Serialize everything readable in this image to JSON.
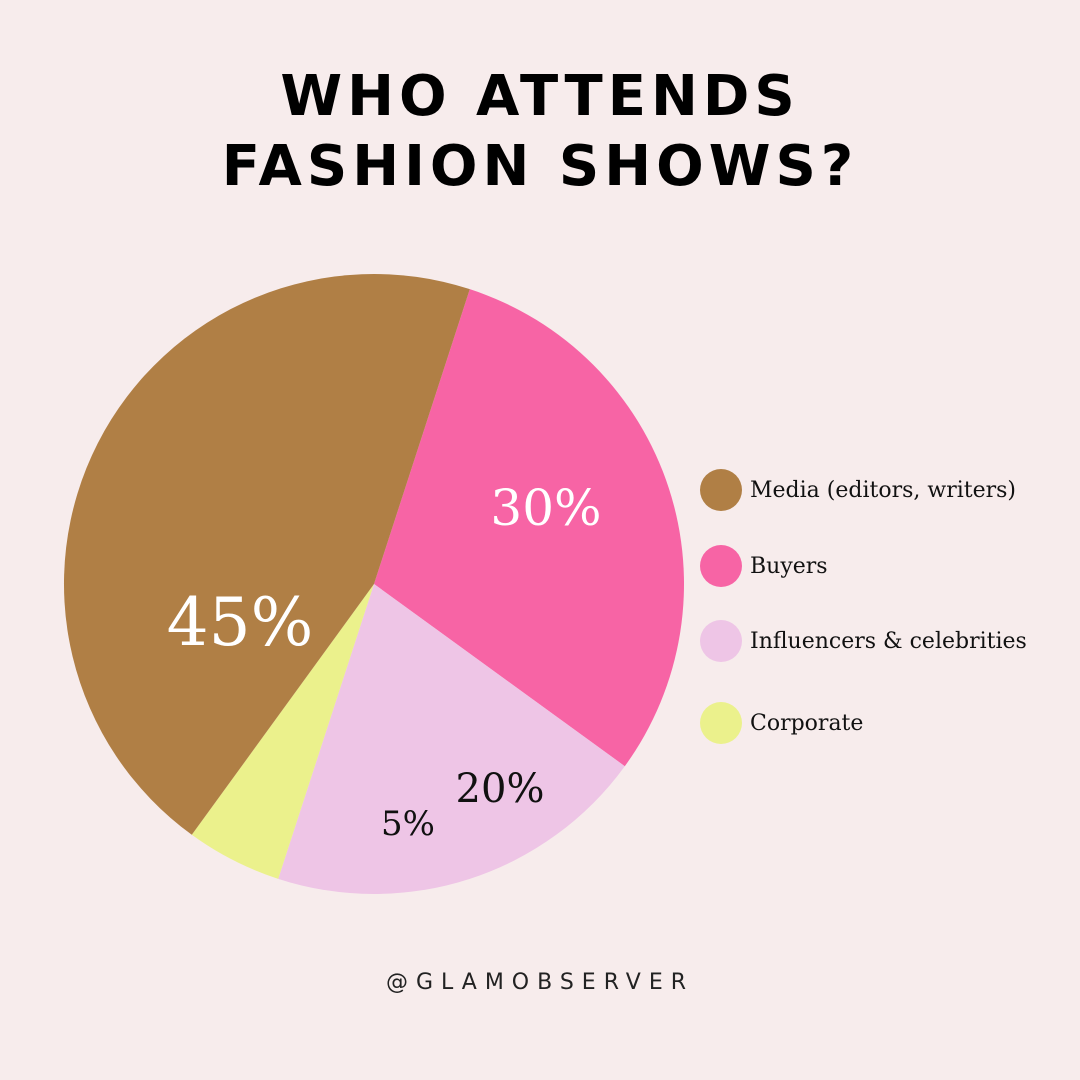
{
  "title_lines": [
    "WHO ATTENDS",
    "FASHION SHOWS?"
  ],
  "footer": "@GLAMOBSERVER",
  "chart_data": {
    "type": "pie",
    "title": "WHO ATTENDS FASHION SHOWS?",
    "legend_position": "right",
    "slices": [
      {
        "name": "Buyers",
        "value": 30,
        "label": "30%",
        "color": "#f764a5",
        "label_color": "#ffffff"
      },
      {
        "name": "Influencers & celebrities",
        "value": 20,
        "label": "20%",
        "color": "#eec5e6",
        "label_color": "#111111"
      },
      {
        "name": "Corporate",
        "value": 5,
        "label": "5%",
        "color": "#ebf18c",
        "label_color": "#111111"
      },
      {
        "name": "Media (editors, writers)",
        "value": 45,
        "label": "45%",
        "color": "#b07f45",
        "label_color": "#ffffff"
      }
    ],
    "legend": [
      {
        "label": "Media (editors, writers)",
        "color": "#b07f45"
      },
      {
        "label": "Buyers",
        "color": "#f764a5"
      },
      {
        "label": "Influencers & celebrities",
        "color": "#eec5e6"
      },
      {
        "label": "Corporate",
        "color": "#ebf18c"
      }
    ]
  }
}
